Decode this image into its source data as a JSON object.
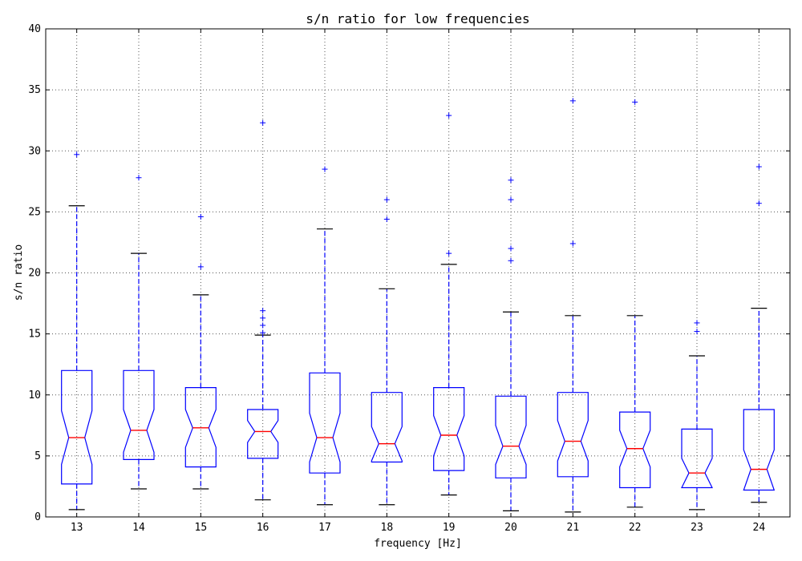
{
  "chart_data": {
    "type": "boxplot",
    "title": "s/n ratio for low frequencies",
    "xlabel": "frequency [Hz]",
    "ylabel": "s/n ratio",
    "ylim": [
      0,
      40
    ],
    "yticks": [
      0,
      5,
      10,
      15,
      20,
      25,
      30,
      35,
      40
    ],
    "grid": true,
    "notched": true,
    "colors": {
      "box": "#0000ff",
      "median": "#ff0000",
      "cap": "#000000",
      "flier": "#0000ff",
      "grid": "#555555"
    },
    "categories": [
      "13",
      "14",
      "15",
      "16",
      "17",
      "18",
      "19",
      "20",
      "21",
      "22",
      "23",
      "24"
    ],
    "boxes": [
      {
        "x": "13",
        "whisker_low": 0.6,
        "q1": 2.7,
        "median": 6.5,
        "q3": 12.0,
        "whisker_high": 25.5,
        "notch_low": 4.3,
        "notch_high": 8.7,
        "fliers": [
          29.7
        ]
      },
      {
        "x": "14",
        "whisker_low": 2.3,
        "q1": 4.7,
        "median": 7.1,
        "q3": 12.0,
        "whisker_high": 21.6,
        "notch_low": 5.3,
        "notch_high": 8.8,
        "fliers": [
          27.8
        ]
      },
      {
        "x": "15",
        "whisker_low": 2.3,
        "q1": 4.1,
        "median": 7.3,
        "q3": 10.6,
        "whisker_high": 18.2,
        "notch_low": 5.7,
        "notch_high": 8.8,
        "fliers": [
          20.5,
          24.6
        ]
      },
      {
        "x": "16",
        "whisker_low": 1.4,
        "q1": 4.8,
        "median": 7.0,
        "q3": 8.8,
        "whisker_high": 14.9,
        "notch_low": 6.1,
        "notch_high": 7.9,
        "fliers": [
          15.1,
          15.7,
          16.3,
          16.9,
          32.3
        ]
      },
      {
        "x": "17",
        "whisker_low": 1.0,
        "q1": 3.6,
        "median": 6.5,
        "q3": 11.8,
        "whisker_high": 23.6,
        "notch_low": 4.5,
        "notch_high": 8.5,
        "fliers": [
          28.5
        ]
      },
      {
        "x": "18",
        "whisker_low": 1.0,
        "q1": 4.5,
        "median": 6.0,
        "q3": 10.2,
        "whisker_high": 18.7,
        "notch_low": 4.6,
        "notch_high": 7.4,
        "fliers": [
          24.4,
          26.0
        ]
      },
      {
        "x": "19",
        "whisker_low": 1.8,
        "q1": 3.8,
        "median": 6.7,
        "q3": 10.6,
        "whisker_high": 20.7,
        "notch_low": 5.0,
        "notch_high": 8.3,
        "fliers": [
          21.6,
          32.9
        ]
      },
      {
        "x": "20",
        "whisker_low": 0.5,
        "q1": 3.2,
        "median": 5.8,
        "q3": 9.9,
        "whisker_high": 16.8,
        "notch_low": 4.3,
        "notch_high": 7.5,
        "fliers": [
          21.0,
          22.0,
          26.0,
          27.6
        ]
      },
      {
        "x": "21",
        "whisker_low": 0.4,
        "q1": 3.3,
        "median": 6.2,
        "q3": 10.2,
        "whisker_high": 16.5,
        "notch_low": 4.6,
        "notch_high": 7.9,
        "fliers": [
          22.4,
          34.1
        ]
      },
      {
        "x": "22",
        "whisker_low": 0.8,
        "q1": 2.4,
        "median": 5.6,
        "q3": 8.6,
        "whisker_high": 16.5,
        "notch_low": 4.1,
        "notch_high": 7.1,
        "fliers": [
          34.0
        ]
      },
      {
        "x": "23",
        "whisker_low": 0.6,
        "q1": 2.4,
        "median": 3.6,
        "q3": 7.2,
        "whisker_high": 13.2,
        "notch_low": 2.4,
        "notch_high": 4.8,
        "fliers": [
          15.2,
          15.9
        ]
      },
      {
        "x": "24",
        "whisker_low": 1.2,
        "q1": 2.2,
        "median": 3.9,
        "q3": 8.8,
        "whisker_high": 17.1,
        "notch_low": 2.2,
        "notch_high": 5.5,
        "fliers": [
          25.7,
          28.7
        ]
      }
    ]
  }
}
